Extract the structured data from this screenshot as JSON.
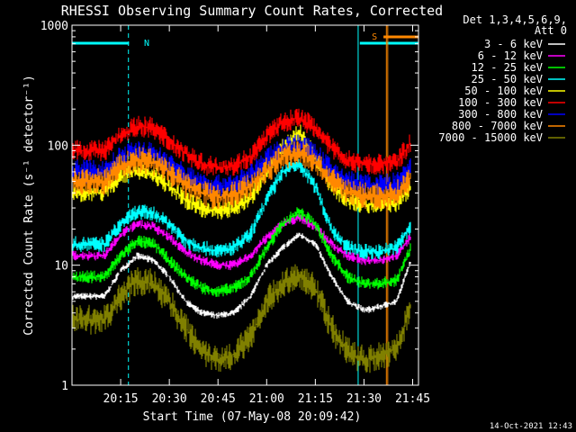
{
  "chart_data": {
    "type": "line",
    "title": "RHESSI Observing Summary Count Rates, Corrected",
    "xlabel": "Start Time (07-May-08 20:09:42)",
    "ylabel": "Corrected Count Rate (s⁻¹ detector⁻¹)",
    "yscale": "log",
    "ylim": [
      1,
      1000
    ],
    "xlim_minutes": [
      20.0,
      21.78
    ],
    "x_ticks": [
      "20:15",
      "20:30",
      "20:45",
      "21:00",
      "21:15",
      "21:30",
      "21:45"
    ],
    "y_ticks": [
      "1",
      "10",
      "100",
      "1000"
    ],
    "legend_header": [
      "Det 1,3,4,5,6,9,",
      "Att 0"
    ],
    "legend_position": "right",
    "timestamp": "14-Oct-2021 12:43",
    "annotations": {
      "night_marker": "N",
      "saa_marker": "S",
      "night_bars": [
        [
          20.0,
          20.2928
        ],
        [
          21.4786,
          21.78
        ]
      ],
      "saa_bar": [
        21.6,
        21.78
      ],
      "dashed_lines": [
        20.29,
        21.78
      ],
      "solid_lines": [
        21.47,
        21.615,
        21.622
      ]
    },
    "x": [
      "20:10",
      "20:15",
      "20:20",
      "20:25",
      "20:30",
      "20:35",
      "20:40",
      "20:45",
      "20:50",
      "20:55",
      "21:00",
      "21:05",
      "21:10",
      "21:15",
      "21:20",
      "21:25",
      "21:30",
      "21:35",
      "21:40",
      "21:45"
    ],
    "series": [
      {
        "name": "3 - 6 keV",
        "color": "#ffffff",
        "values": [
          5.5,
          9,
          12,
          11,
          8,
          5,
          4,
          3.8,
          4,
          5.5,
          10,
          14,
          18,
          15,
          8,
          5,
          4.2,
          4.5,
          5,
          12
        ]
      },
      {
        "name": "6 - 12 keV",
        "color": "#ff00ff",
        "values": [
          12,
          18,
          22,
          21,
          17,
          13,
          11,
          10,
          10,
          12,
          17,
          22,
          25,
          21,
          15,
          12,
          11,
          11,
          12,
          18
        ]
      },
      {
        "name": "12 - 25 keV",
        "color": "#00ff00",
        "values": [
          8,
          12,
          16,
          15,
          11,
          8,
          6.5,
          6,
          6.5,
          8,
          14,
          22,
          28,
          22,
          12,
          8,
          7,
          7,
          7.5,
          15
        ]
      },
      {
        "name": "25 - 50 keV",
        "color": "#00ffff",
        "values": [
          15,
          22,
          28,
          27,
          22,
          16,
          14,
          13,
          14,
          18,
          35,
          60,
          70,
          45,
          20,
          14,
          13,
          13,
          14,
          22
        ]
      },
      {
        "name": "50 - 100 keV",
        "color": "#ffff00",
        "values": [
          40,
          55,
          62,
          58,
          45,
          35,
          30,
          28,
          30,
          36,
          60,
          95,
          130,
          80,
          45,
          35,
          32,
          32,
          33,
          45
        ]
      },
      {
        "name": "100 - 300 keV",
        "color": "#ff0000",
        "values": [
          90,
          120,
          145,
          140,
          110,
          85,
          70,
          65,
          68,
          80,
          120,
          155,
          170,
          140,
          95,
          75,
          70,
          70,
          72,
          110
        ]
      },
      {
        "name": "300 - 800 keV",
        "color": "#0000ff",
        "values": [
          60,
          78,
          88,
          84,
          70,
          55,
          48,
          45,
          47,
          55,
          75,
          95,
          100,
          85,
          60,
          50,
          46,
          46,
          47,
          65
        ]
      },
      {
        "name": "800 - 7000 keV",
        "color": "#ff8800",
        "values": [
          50,
          66,
          76,
          72,
          60,
          46,
          40,
          37,
          39,
          46,
          62,
          80,
          88,
          72,
          50,
          41,
          38,
          38,
          39,
          55
        ]
      },
      {
        "name": "7000 - 15000 keV",
        "color": "#808000",
        "values": [
          3.5,
          5.5,
          7.5,
          7,
          5,
          3,
          2,
          1.6,
          1.8,
          2.5,
          5,
          7,
          8,
          6.5,
          3,
          1.9,
          1.6,
          1.8,
          2,
          5
        ]
      }
    ]
  }
}
